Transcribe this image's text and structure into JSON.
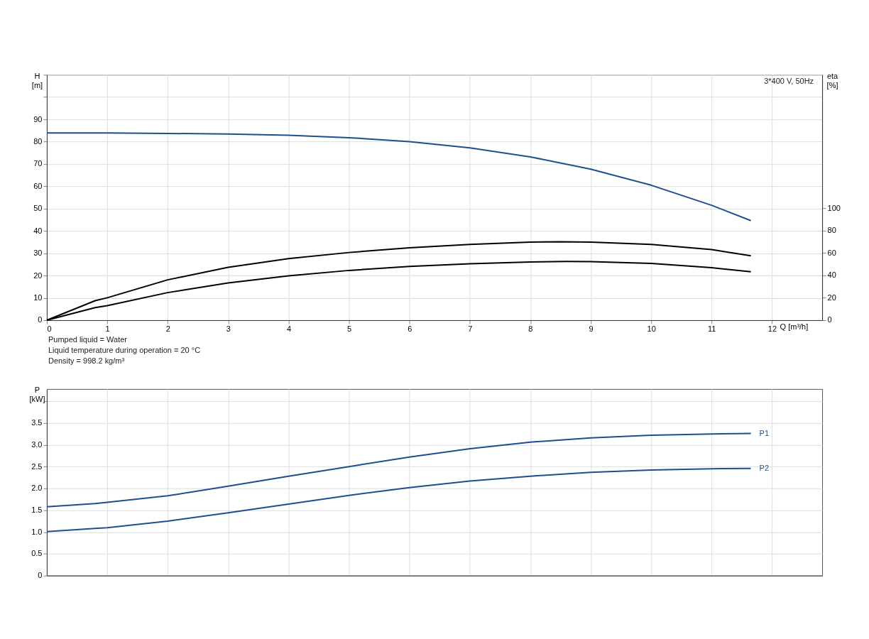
{
  "chart_data": [
    {
      "type": "line",
      "xlabel": "Q [m³/h]",
      "ylabel": "H [m]",
      "y2label": "eta [%]",
      "xlim": [
        0,
        12.83
      ],
      "xticks": [
        0,
        1,
        2,
        3,
        4,
        5,
        6,
        7,
        8,
        9,
        10,
        11,
        12
      ],
      "ylim": [
        0,
        110
      ],
      "yticks": [
        0,
        10,
        20,
        30,
        40,
        50,
        60,
        70,
        80,
        90,
        {
          "value": 100,
          "label": null
        },
        {
          "value": 110,
          "label": null
        }
      ],
      "y2lim": [
        0,
        219
      ],
      "y2ticks": [
        0,
        20,
        40,
        60,
        80,
        100
      ],
      "grid": true,
      "marker": "none",
      "line_style": "solid",
      "annotations": [
        "3*400 V, 50Hz",
        "Pumped liquid = Water",
        "Liquid temperature during operation = 20 °C",
        "Density = 998.2 kg/m³"
      ],
      "series": [
        {
          "color": "#1f4e8c",
          "x": [
            0,
            0.8,
            1,
            2,
            3,
            4,
            5,
            6,
            7,
            8,
            9,
            10,
            11,
            11.65
          ],
          "values": [
            83.9,
            83.9,
            83.9,
            83.7,
            83.4,
            82.9,
            81.8,
            80,
            77.2,
            73.2,
            67.7,
            60.5,
            51.5,
            44.6
          ]
        },
        {
          "color": "#000000",
          "axis": "y2",
          "x": [
            0,
            0.8,
            1,
            2,
            3,
            4,
            5,
            6,
            7,
            8,
            8.5,
            9,
            10,
            11,
            11.65
          ],
          "values": [
            0,
            17.4,
            20,
            36,
            47.2,
            55,
            60.4,
            64.6,
            67.6,
            69.6,
            70,
            69.6,
            67.6,
            63,
            57.4
          ]
        },
        {
          "color": "#000000",
          "axis": "y2",
          "x": [
            0,
            0.8,
            1,
            2,
            3,
            4,
            5,
            6,
            7,
            8,
            8.6,
            9,
            10,
            11,
            11.65
          ],
          "values": [
            0,
            11.2,
            13,
            24.6,
            33.2,
            39.6,
            44.4,
            48,
            50.4,
            52,
            52.4,
            52.2,
            50.6,
            46.8,
            43.2
          ]
        }
      ]
    },
    {
      "type": "line",
      "ylabel": "P [kW]",
      "xlim": [
        0,
        12.83
      ],
      "xticks": [
        0,
        1,
        2,
        3,
        4,
        5,
        6,
        7,
        8,
        9,
        10,
        11,
        12
      ],
      "ylim": [
        0,
        4.28
      ],
      "yticks": [
        0,
        0.5,
        {
          "value": 1,
          "label": "1.0"
        },
        1.5,
        {
          "value": 2,
          "label": "2.0"
        },
        2.5,
        {
          "value": 3,
          "label": "3.0"
        },
        3.5,
        {
          "value": 4,
          "label": null
        }
      ],
      "tick_labels": "y",
      "grid": true,
      "marker": "none",
      "line_style": "solid",
      "series": [
        {
          "name": "P1",
          "color": "#1f4e8c",
          "x": [
            0,
            0.8,
            1,
            2,
            3,
            4,
            5,
            6,
            7,
            8,
            9,
            10,
            11,
            11.65
          ],
          "values": [
            1.58,
            1.65,
            1.68,
            1.83,
            2.05,
            2.28,
            2.5,
            2.72,
            2.91,
            3.06,
            3.16,
            3.22,
            3.25,
            3.26
          ]
        },
        {
          "name": "P2",
          "color": "#1f4e8c",
          "x": [
            0,
            0.8,
            1,
            2,
            3,
            4,
            5,
            6,
            7,
            8,
            9,
            10,
            11,
            11.65
          ],
          "values": [
            1.01,
            1.08,
            1.1,
            1.25,
            1.44,
            1.64,
            1.84,
            2.02,
            2.17,
            2.28,
            2.37,
            2.42,
            2.45,
            2.46
          ]
        }
      ]
    }
  ]
}
